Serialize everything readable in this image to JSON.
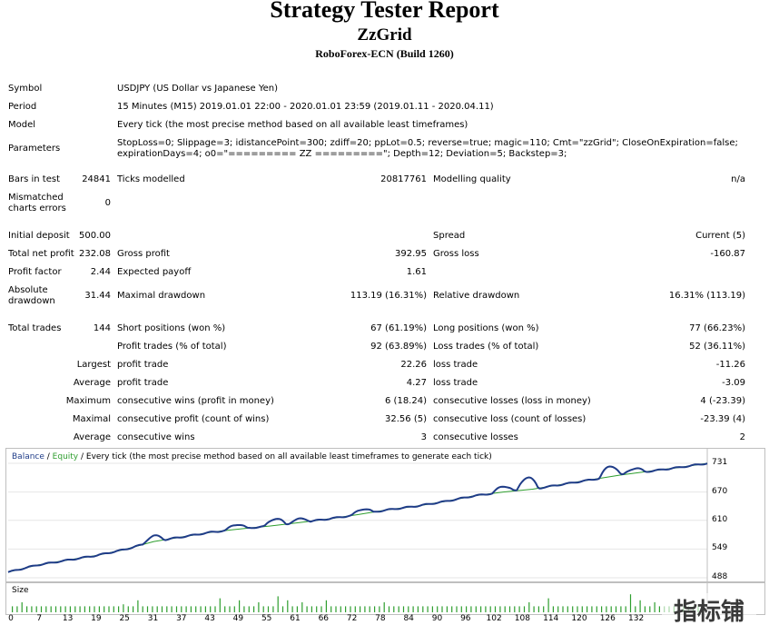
{
  "header": {
    "title": "Strategy Tester Report",
    "subtitle": "ZzGrid",
    "build": "RoboForex-ECN (Build 1260)"
  },
  "info": {
    "symbol_label": "Symbol",
    "symbol_value": "USDJPY (US Dollar vs Japanese Yen)",
    "period_label": "Period",
    "period_value": "15 Minutes (M15) 2019.01.01 22:00 - 2020.01.01 23:59 (2019.01.11 - 2020.04.11)",
    "model_label": "Model",
    "model_value": "Every tick (the most precise method based on all available least timeframes)",
    "parameters_label": "Parameters",
    "parameters_line1": "StopLoss=0; Slippage=3; idistancePoint=300; zdiff=20; ppLot=0.5; reverse=true; magic=110; Cmt=\"zzGrid\"; CloseOnExpiration=false;",
    "parameters_line2": "expirationDays=4; o0=\"========= ZZ =========\"; Depth=12; Deviation=5; Backstep=3;",
    "bars_label": "Bars in test",
    "bars_value": "24841",
    "ticks_label": "Ticks modelled",
    "ticks_value": "20817761",
    "quality_label": "Modelling quality",
    "quality_value": "n/a",
    "mismatched_label_1": "Mismatched",
    "mismatched_label_2": "charts errors",
    "mismatched_value": "0"
  },
  "stats": {
    "initial_deposit_label": "Initial deposit",
    "initial_deposit": "500.00",
    "spread_label": "Spread",
    "spread": "Current (5)",
    "net_profit_label": "Total net profit",
    "net_profit": "232.08",
    "gross_profit_label": "Gross profit",
    "gross_profit": "392.95",
    "gross_loss_label": "Gross loss",
    "gross_loss": "-160.87",
    "profit_factor_label": "Profit factor",
    "profit_factor": "2.44",
    "expected_payoff_label": "Expected payoff",
    "expected_payoff": "1.61",
    "abs_drawdown_label_1": "Absolute",
    "abs_drawdown_label_2": "drawdown",
    "abs_drawdown": "31.44",
    "max_drawdown_label": "Maximal drawdown",
    "max_drawdown": "113.19 (16.31%)",
    "rel_drawdown_label": "Relative drawdown",
    "rel_drawdown": "16.31% (113.19)",
    "total_trades_label": "Total trades",
    "total_trades": "144",
    "short_label": "Short positions (won %)",
    "short": "67 (61.19%)",
    "long_label": "Long positions (won %)",
    "long": "77 (66.23%)",
    "profit_trades_label": "Profit trades (% of total)",
    "profit_trades": "92 (63.89%)",
    "loss_trades_label": "Loss trades (% of total)",
    "loss_trades": "52 (36.11%)",
    "largest_label": "Largest",
    "largest_profit_label": "profit trade",
    "largest_profit": "22.26",
    "largest_loss_label": "loss trade",
    "largest_loss": "-11.26",
    "average_label": "Average",
    "average_profit_label": "profit trade",
    "average_profit": "4.27",
    "average_loss_label": "loss trade",
    "average_loss": "-3.09",
    "maximum_label": "Maximum",
    "max_cons_wins_label": "consecutive wins (profit in money)",
    "max_cons_wins": "6 (18.24)",
    "max_cons_losses_label": "consecutive losses (loss in money)",
    "max_cons_losses": "4 (-23.39)",
    "maximal_label": "Maximal",
    "maximal_cons_profit_label": "consecutive profit (count of wins)",
    "maximal_cons_profit": "32.56 (5)",
    "maximal_cons_loss_label": "consecutive loss (count of losses)",
    "maximal_cons_loss": "-23.39 (4)",
    "avg_label": "Average",
    "avg_cons_wins_label": "consecutive wins",
    "avg_cons_wins": "3",
    "avg_cons_losses_label": "consecutive losses",
    "avg_cons_losses": "2"
  },
  "chart_data": {
    "type": "line",
    "legend_balance": "Balance",
    "legend_sep1": " / ",
    "legend_equity": "Equity",
    "legend_rest": " / Every tick (the most precise method based on all available least timeframes to generate each tick)",
    "size_label": "Size",
    "balance_color": "#1f3c88",
    "equity_color": "#2e9e2e",
    "ylim": [
      488,
      731
    ],
    "yticks": [
      "731",
      "670",
      "610",
      "549",
      "488"
    ],
    "xticks": [
      "0",
      "7",
      "13",
      "19",
      "25",
      "31",
      "37",
      "43",
      "49",
      "55",
      "61",
      "66",
      "72",
      "78",
      "84",
      "90",
      "96",
      "102",
      "108",
      "114",
      "120",
      "126",
      "132"
    ],
    "x": [
      0,
      6,
      12,
      18,
      24,
      30,
      36,
      42,
      48,
      54,
      60,
      66,
      72,
      78,
      84,
      90,
      96,
      102,
      108,
      114,
      120,
      126,
      132,
      138,
      144
    ],
    "balance": [
      500,
      515,
      525,
      535,
      548,
      565,
      575,
      585,
      592,
      598,
      605,
      613,
      622,
      632,
      640,
      650,
      662,
      670,
      676,
      686,
      696,
      706,
      714,
      722,
      731
    ],
    "equity_bumps": [
      [
        30,
        12
      ],
      [
        47,
        10
      ],
      [
        55,
        14
      ],
      [
        60,
        8
      ],
      [
        73,
        10
      ],
      [
        102,
        12
      ],
      [
        107,
        26
      ],
      [
        124,
        22
      ],
      [
        129,
        10
      ]
    ],
    "size_bars": [
      0.3,
      0.3,
      0.5,
      0.3,
      0.3,
      0.3,
      0.3,
      0.3,
      0.3,
      0.3,
      0.3,
      0.3,
      0.3,
      0.3,
      0.3,
      0.3,
      0.3,
      0.3,
      0.3,
      0.3,
      0.3,
      0.3,
      0.3,
      0.4,
      0.3,
      0.3,
      0.6,
      0.3,
      0.3,
      0.3,
      0.3,
      0.3,
      0.3,
      0.3,
      0.3,
      0.3,
      0.3,
      0.3,
      0.3,
      0.3,
      0.3,
      0.3,
      0.3,
      0.7,
      0.3,
      0.3,
      0.3,
      0.6,
      0.3,
      0.3,
      0.3,
      0.5,
      0.3,
      0.3,
      0.3,
      0.8,
      0.3,
      0.6,
      0.3,
      0.3,
      0.5,
      0.3,
      0.3,
      0.3,
      0.3,
      0.6,
      0.3,
      0.3,
      0.3,
      0.3,
      0.3,
      0.3,
      0.3,
      0.3,
      0.3,
      0.3,
      0.3,
      0.5,
      0.3,
      0.3,
      0.3,
      0.3,
      0.3,
      0.3,
      0.3,
      0.3,
      0.3,
      0.3,
      0.3,
      0.3,
      0.3,
      0.3,
      0.3,
      0.3,
      0.3,
      0.3,
      0.3,
      0.3,
      0.3,
      0.3,
      0.3,
      0.3,
      0.3,
      0.3,
      0.3,
      0.3,
      0.3,
      0.5,
      0.3,
      0.3,
      0.3,
      0.7,
      0.3,
      0.3,
      0.3,
      0.3,
      0.3,
      0.3,
      0.3,
      0.3,
      0.3,
      0.3,
      0.3,
      0.3,
      0.3,
      0.3,
      0.3,
      0.3,
      0.9,
      0.3,
      0.6,
      0.3,
      0.3,
      0.5,
      0.3,
      0.3,
      0.3,
      0.3,
      0.3,
      0.3,
      0.3,
      0.3,
      0.3,
      0.3
    ]
  },
  "watermark": {
    "text": "指标铺"
  }
}
